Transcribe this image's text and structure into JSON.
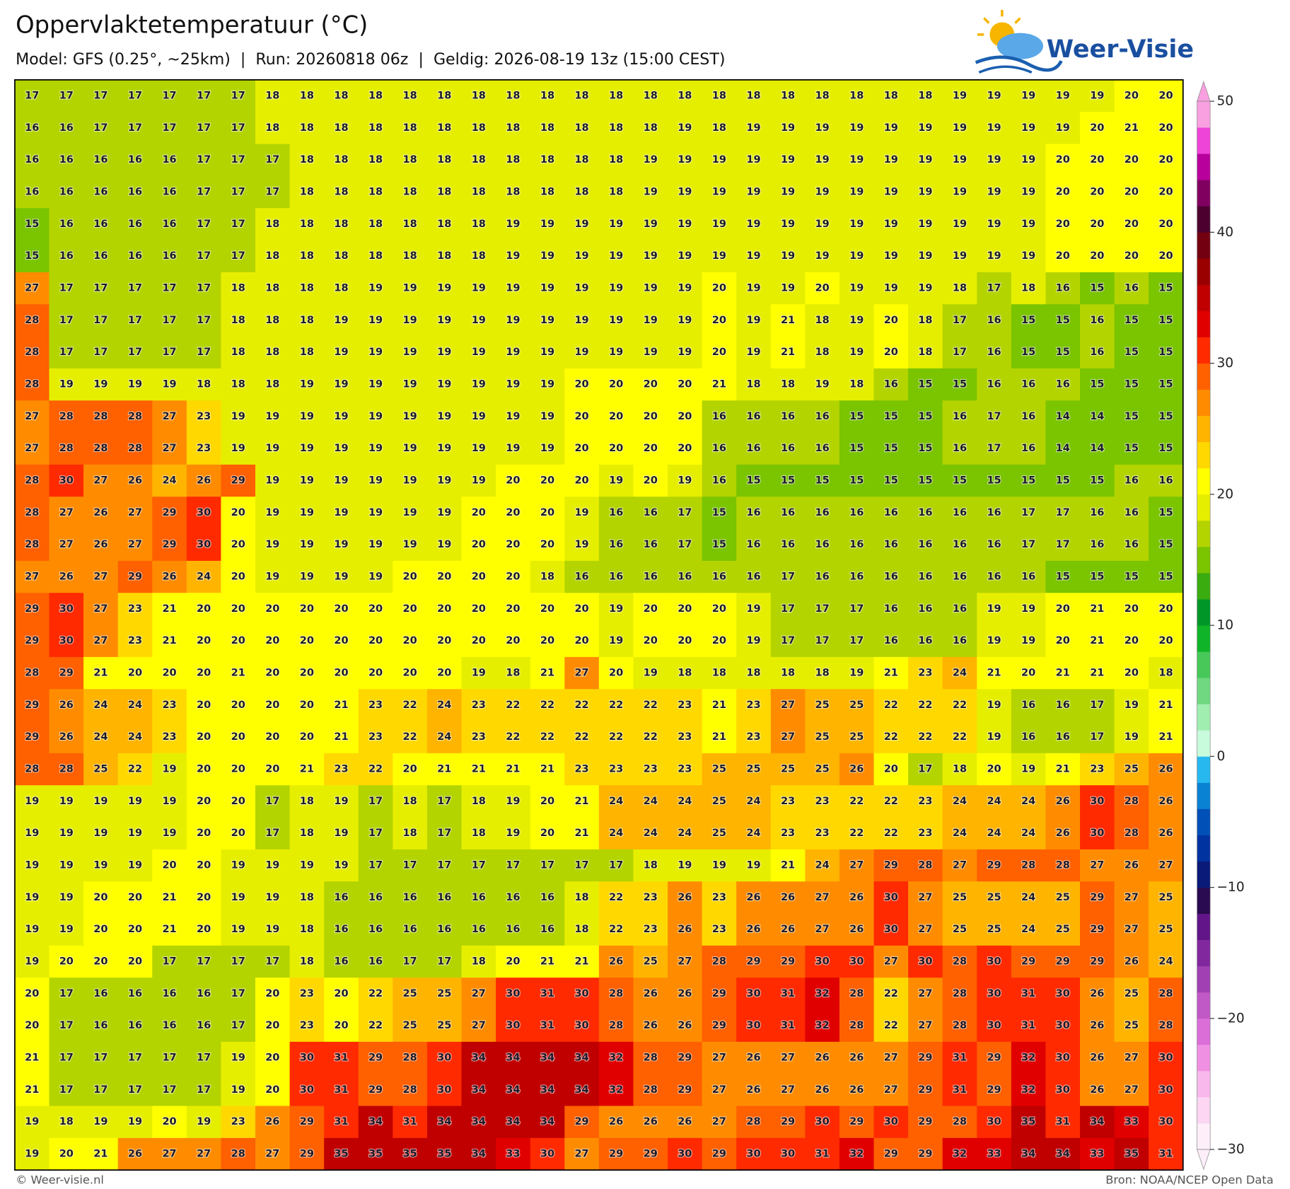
{
  "header": {
    "title": "Oppervlaktetemperatuur (°C)",
    "subtitle": "Model: GFS (0.25°, ~25km)  |  Run: 20260818 06z  |  Geldig: 2026-08-19 13z (15:00 CEST)"
  },
  "logo": {
    "text": "Weer-Visie"
  },
  "grid": {
    "rows": [
      [
        17,
        17,
        17,
        17,
        17,
        17,
        17,
        18,
        18,
        18,
        18,
        18,
        18,
        18,
        18,
        18,
        18,
        18,
        18,
        18,
        18,
        18,
        18,
        18,
        18,
        18,
        18,
        19,
        19,
        19,
        19,
        19,
        20,
        20
      ],
      [
        16,
        16,
        17,
        17,
        17,
        17,
        17,
        18,
        18,
        18,
        18,
        18,
        18,
        18,
        18,
        18,
        18,
        18,
        18,
        19,
        18,
        19,
        19,
        19,
        19,
        19,
        19,
        19,
        19,
        19,
        19,
        20,
        21,
        20
      ],
      [
        16,
        16,
        16,
        16,
        16,
        17,
        17,
        17,
        18,
        18,
        18,
        18,
        18,
        18,
        18,
        18,
        18,
        18,
        19,
        19,
        19,
        19,
        19,
        19,
        19,
        19,
        19,
        19,
        19,
        19,
        20,
        20,
        20,
        20
      ],
      [
        16,
        16,
        16,
        16,
        16,
        17,
        17,
        17,
        18,
        18,
        18,
        18,
        18,
        18,
        18,
        18,
        18,
        18,
        19,
        19,
        19,
        19,
        19,
        19,
        19,
        19,
        19,
        19,
        19,
        19,
        20,
        20,
        20,
        20
      ],
      [
        15,
        16,
        16,
        16,
        16,
        17,
        17,
        18,
        18,
        18,
        18,
        18,
        18,
        18,
        19,
        19,
        19,
        19,
        19,
        19,
        19,
        19,
        19,
        19,
        19,
        19,
        19,
        19,
        19,
        19,
        20,
        20,
        20,
        20
      ],
      [
        15,
        16,
        16,
        16,
        16,
        17,
        17,
        18,
        18,
        18,
        18,
        18,
        18,
        18,
        19,
        19,
        19,
        19,
        19,
        19,
        19,
        19,
        19,
        19,
        19,
        19,
        19,
        19,
        19,
        19,
        20,
        20,
        20,
        20
      ],
      [
        27,
        17,
        17,
        17,
        17,
        17,
        18,
        18,
        18,
        18,
        19,
        19,
        19,
        19,
        19,
        19,
        19,
        19,
        19,
        19,
        20,
        19,
        19,
        20,
        19,
        19,
        19,
        18,
        17,
        18,
        16,
        15,
        16,
        15
      ],
      [
        28,
        17,
        17,
        17,
        17,
        17,
        18,
        18,
        18,
        19,
        19,
        19,
        19,
        19,
        19,
        19,
        19,
        19,
        19,
        19,
        20,
        19,
        21,
        18,
        19,
        20,
        18,
        17,
        16,
        15,
        15,
        16,
        15,
        15
      ],
      [
        28,
        17,
        17,
        17,
        17,
        17,
        18,
        18,
        18,
        19,
        19,
        19,
        19,
        19,
        19,
        19,
        19,
        19,
        19,
        19,
        20,
        19,
        21,
        18,
        19,
        20,
        18,
        17,
        16,
        15,
        15,
        16,
        15,
        15
      ],
      [
        28,
        19,
        19,
        19,
        19,
        18,
        18,
        18,
        19,
        19,
        19,
        19,
        19,
        19,
        19,
        19,
        20,
        20,
        20,
        20,
        21,
        18,
        18,
        19,
        18,
        16,
        15,
        15,
        16,
        16,
        16,
        15,
        15,
        15
      ],
      [
        27,
        28,
        28,
        28,
        27,
        23,
        19,
        19,
        19,
        19,
        19,
        19,
        19,
        19,
        19,
        19,
        20,
        20,
        20,
        20,
        16,
        16,
        16,
        16,
        15,
        15,
        15,
        16,
        17,
        16,
        14,
        14,
        15,
        15
      ],
      [
        27,
        28,
        28,
        28,
        27,
        23,
        19,
        19,
        19,
        19,
        19,
        19,
        19,
        19,
        19,
        19,
        20,
        20,
        20,
        20,
        16,
        16,
        16,
        16,
        15,
        15,
        15,
        16,
        17,
        16,
        14,
        14,
        15,
        15
      ],
      [
        28,
        30,
        27,
        26,
        24,
        26,
        29,
        19,
        19,
        19,
        19,
        19,
        19,
        19,
        20,
        20,
        20,
        19,
        20,
        19,
        16,
        15,
        15,
        15,
        15,
        15,
        15,
        15,
        15,
        15,
        15,
        15,
        16,
        16
      ],
      [
        28,
        27,
        26,
        27,
        29,
        30,
        20,
        19,
        19,
        19,
        19,
        19,
        19,
        20,
        20,
        20,
        19,
        16,
        16,
        17,
        15,
        16,
        16,
        16,
        16,
        16,
        16,
        16,
        16,
        17,
        17,
        16,
        16,
        15
      ],
      [
        28,
        27,
        26,
        27,
        29,
        30,
        20,
        19,
        19,
        19,
        19,
        19,
        19,
        20,
        20,
        20,
        19,
        16,
        16,
        17,
        15,
        16,
        16,
        16,
        16,
        16,
        16,
        16,
        16,
        17,
        17,
        16,
        16,
        15
      ],
      [
        27,
        26,
        27,
        29,
        26,
        24,
        20,
        19,
        19,
        19,
        19,
        20,
        20,
        20,
        20,
        18,
        16,
        16,
        16,
        16,
        16,
        16,
        17,
        16,
        16,
        16,
        16,
        16,
        16,
        16,
        15,
        15,
        15,
        15
      ],
      [
        29,
        30,
        27,
        23,
        21,
        20,
        20,
        20,
        20,
        20,
        20,
        20,
        20,
        20,
        20,
        20,
        20,
        19,
        20,
        20,
        20,
        19,
        17,
        17,
        17,
        16,
        16,
        16,
        19,
        19,
        20,
        21,
        20,
        20
      ],
      [
        29,
        30,
        27,
        23,
        21,
        20,
        20,
        20,
        20,
        20,
        20,
        20,
        20,
        20,
        20,
        20,
        20,
        19,
        20,
        20,
        20,
        19,
        17,
        17,
        17,
        16,
        16,
        16,
        19,
        19,
        20,
        21,
        20,
        20
      ],
      [
        28,
        29,
        21,
        20,
        20,
        20,
        21,
        20,
        20,
        20,
        20,
        20,
        20,
        19,
        18,
        21,
        27,
        20,
        19,
        18,
        18,
        18,
        18,
        18,
        19,
        21,
        23,
        24,
        21,
        20,
        21,
        21,
        20,
        18
      ],
      [
        29,
        26,
        24,
        24,
        23,
        20,
        20,
        20,
        20,
        21,
        23,
        22,
        24,
        23,
        22,
        22,
        22,
        22,
        22,
        23,
        21,
        23,
        27,
        25,
        25,
        22,
        22,
        22,
        19,
        16,
        16,
        17,
        19,
        21
      ],
      [
        29,
        26,
        24,
        24,
        23,
        20,
        20,
        20,
        20,
        21,
        23,
        22,
        24,
        23,
        22,
        22,
        22,
        22,
        22,
        23,
        21,
        23,
        27,
        25,
        25,
        22,
        22,
        22,
        19,
        16,
        16,
        17,
        19,
        21
      ],
      [
        28,
        28,
        25,
        22,
        19,
        20,
        20,
        20,
        21,
        23,
        22,
        20,
        21,
        21,
        21,
        21,
        23,
        23,
        23,
        23,
        25,
        25,
        25,
        25,
        26,
        20,
        17,
        18,
        20,
        19,
        21,
        23,
        25,
        26
      ],
      [
        19,
        19,
        19,
        19,
        19,
        20,
        20,
        17,
        18,
        19,
        17,
        18,
        17,
        18,
        19,
        20,
        21,
        24,
        24,
        24,
        25,
        24,
        23,
        23,
        22,
        22,
        23,
        24,
        24,
        24,
        26,
        30,
        28,
        26
      ],
      [
        19,
        19,
        19,
        19,
        19,
        20,
        20,
        17,
        18,
        19,
        17,
        18,
        17,
        18,
        19,
        20,
        21,
        24,
        24,
        24,
        25,
        24,
        23,
        23,
        22,
        22,
        23,
        24,
        24,
        24,
        26,
        30,
        28,
        26
      ],
      [
        19,
        19,
        19,
        19,
        20,
        20,
        19,
        19,
        19,
        19,
        17,
        17,
        17,
        17,
        17,
        17,
        17,
        17,
        18,
        19,
        19,
        19,
        21,
        24,
        27,
        29,
        28,
        27,
        29,
        28,
        28,
        27,
        26,
        27
      ],
      [
        19,
        19,
        20,
        20,
        21,
        20,
        19,
        19,
        18,
        16,
        16,
        16,
        16,
        16,
        16,
        16,
        18,
        22,
        23,
        26,
        23,
        26,
        26,
        27,
        26,
        30,
        27,
        25,
        25,
        24,
        25,
        29,
        27,
        25
      ],
      [
        19,
        19,
        20,
        20,
        21,
        20,
        19,
        19,
        18,
        16,
        16,
        16,
        16,
        16,
        16,
        16,
        18,
        22,
        23,
        26,
        23,
        26,
        26,
        27,
        26,
        30,
        27,
        25,
        25,
        24,
        25,
        29,
        27,
        25
      ],
      [
        19,
        20,
        20,
        20,
        17,
        17,
        17,
        17,
        18,
        16,
        16,
        17,
        17,
        18,
        20,
        21,
        21,
        26,
        25,
        27,
        28,
        29,
        29,
        30,
        30,
        27,
        30,
        28,
        30,
        29,
        29,
        29,
        26,
        24
      ],
      [
        20,
        17,
        16,
        16,
        16,
        16,
        17,
        20,
        23,
        20,
        22,
        25,
        25,
        27,
        30,
        31,
        30,
        28,
        26,
        26,
        29,
        30,
        31,
        32,
        28,
        22,
        27,
        28,
        30,
        31,
        30,
        26,
        25,
        28
      ],
      [
        20,
        17,
        16,
        16,
        16,
        16,
        17,
        20,
        23,
        20,
        22,
        25,
        25,
        27,
        30,
        31,
        30,
        28,
        26,
        26,
        29,
        30,
        31,
        32,
        28,
        22,
        27,
        28,
        30,
        31,
        30,
        26,
        25,
        28
      ],
      [
        21,
        17,
        17,
        17,
        17,
        17,
        19,
        20,
        30,
        31,
        29,
        28,
        30,
        34,
        34,
        34,
        34,
        32,
        28,
        29,
        27,
        26,
        27,
        26,
        26,
        27,
        29,
        31,
        29,
        32,
        30,
        26,
        27,
        30
      ],
      [
        21,
        17,
        17,
        17,
        17,
        17,
        19,
        20,
        30,
        31,
        29,
        28,
        30,
        34,
        34,
        34,
        34,
        32,
        28,
        29,
        27,
        26,
        27,
        26,
        26,
        27,
        29,
        31,
        29,
        32,
        30,
        26,
        27,
        30
      ],
      [
        19,
        18,
        19,
        19,
        20,
        19,
        23,
        26,
        29,
        31,
        34,
        31,
        34,
        34,
        34,
        34,
        29,
        26,
        26,
        26,
        27,
        28,
        29,
        30,
        29,
        30,
        29,
        28,
        30,
        35,
        31,
        34,
        33,
        30
      ],
      [
        19,
        20,
        21,
        26,
        27,
        27,
        28,
        27,
        29,
        35,
        35,
        35,
        35,
        34,
        33,
        30,
        27,
        29,
        29,
        30,
        29,
        30,
        30,
        31,
        32,
        29,
        29,
        32,
        33,
        34,
        34,
        33,
        35,
        31
      ]
    ]
  },
  "colorbar": {
    "lim": [
      -30,
      50
    ],
    "ticks": [
      {
        "value": -30,
        "label": "−30"
      },
      {
        "value": -20,
        "label": "−20"
      },
      {
        "value": -10,
        "label": "−10"
      },
      0,
      10,
      20,
      30,
      40,
      50
    ],
    "colors": [
      "#fdeefa",
      "#fcd6f3",
      "#f9b8ec",
      "#ef90e2",
      "#dc6ed8",
      "#c058c6",
      "#a040b2",
      "#82289e",
      "#621588",
      "#2a0a50",
      "#0a1a78",
      "#0032a0",
      "#0050b8",
      "#0a82d4",
      "#28b8f0",
      "#c8fadc",
      "#a0eeb0",
      "#70d880",
      "#48c858",
      "#10b428",
      "#009628",
      "#3aac10",
      "#7ac400",
      "#b4d400",
      "#e6ee00",
      "#ffff00",
      "#ffd800",
      "#ffb400",
      "#ff8c00",
      "#ff6000",
      "#ff2a00",
      "#e00000",
      "#c00000",
      "#9a0000",
      "#720010",
      "#4c0030",
      "#800060",
      "#b8009c",
      "#ee44d8",
      "#f8a0e0"
    ]
  },
  "footer": {
    "left": "© Weer-visie.nl",
    "right": "Bron: NOAA/NCEP Open Data"
  }
}
